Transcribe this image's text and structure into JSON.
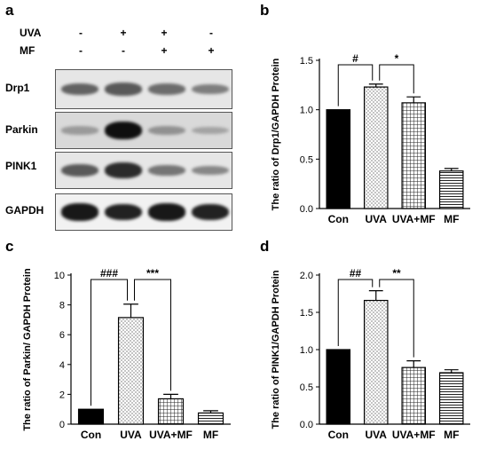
{
  "panels": {
    "a": "a",
    "b": "b",
    "c": "c",
    "d": "d"
  },
  "panel_a": {
    "treatments": [
      {
        "label": "UVA",
        "signs": [
          "-",
          "+",
          "+",
          "-"
        ]
      },
      {
        "label": "MF",
        "signs": [
          "-",
          "-",
          "+",
          "+"
        ]
      }
    ],
    "blots": [
      {
        "label": "Drp1",
        "intensity": [
          0.55,
          0.6,
          0.5,
          0.4
        ]
      },
      {
        "label": "Parkin",
        "intensity": [
          0.25,
          1.0,
          0.3,
          0.2
        ]
      },
      {
        "label": "PINK1",
        "intensity": [
          0.6,
          0.85,
          0.45,
          0.35
        ]
      },
      {
        "label": "GAPDH",
        "intensity": [
          0.95,
          0.9,
          0.95,
          0.9
        ]
      }
    ]
  },
  "chart_data": [
    {
      "type": "bar",
      "panel": "b",
      "categories": [
        "Con",
        "UVA",
        "UVA+MF",
        "MF"
      ],
      "values": [
        1.0,
        1.23,
        1.07,
        0.38
      ],
      "errors": [
        0,
        0.03,
        0.06,
        0.025
      ],
      "patterns": [
        "solid",
        "dots",
        "grid",
        "hlines"
      ],
      "ylabel": "The ratio of Drp1/GAPDH Protein",
      "ylim": [
        0,
        1.5
      ],
      "yticks": [
        "0.0",
        "0.5",
        "1.0",
        "1.5"
      ],
      "ytick_values": [
        0,
        0.5,
        1.0,
        1.5
      ],
      "significance": [
        {
          "from": "Con",
          "to": "UVA",
          "label": "#"
        },
        {
          "from": "UVA",
          "to": "UVA+MF",
          "label": "*"
        }
      ]
    },
    {
      "type": "bar",
      "panel": "c",
      "categories": [
        "Con",
        "UVA",
        "UVA+MF",
        "MF"
      ],
      "values": [
        1.0,
        7.15,
        1.7,
        0.75
      ],
      "errors": [
        0,
        0.9,
        0.3,
        0.15
      ],
      "patterns": [
        "solid",
        "dots",
        "grid",
        "hlines"
      ],
      "ylabel": "The ratio of Parkin/ GAPDH Protein",
      "ylim": [
        0,
        10
      ],
      "yticks": [
        "0",
        "2",
        "4",
        "6",
        "8",
        "10"
      ],
      "ytick_values": [
        0,
        2,
        4,
        6,
        8,
        10
      ],
      "significance": [
        {
          "from": "Con",
          "to": "UVA",
          "label": "###"
        },
        {
          "from": "UVA",
          "to": "UVA+MF",
          "label": "***"
        }
      ]
    },
    {
      "type": "bar",
      "panel": "d",
      "categories": [
        "Con",
        "UVA",
        "UVA+MF",
        "MF"
      ],
      "values": [
        1.0,
        1.66,
        0.76,
        0.69
      ],
      "errors": [
        0,
        0.13,
        0.09,
        0.04
      ],
      "patterns": [
        "solid",
        "dots",
        "grid",
        "hlines"
      ],
      "ylabel": "The ratio of PINK1/GAPDH Protein",
      "ylim": [
        0,
        2.0
      ],
      "yticks": [
        "0.0",
        "0.5",
        "1.0",
        "1.5",
        "2.0"
      ],
      "ytick_values": [
        0,
        0.5,
        1.0,
        1.5,
        2.0
      ],
      "significance": [
        {
          "from": "Con",
          "to": "UVA",
          "label": "##"
        },
        {
          "from": "UVA",
          "to": "UVA+MF",
          "label": "**"
        }
      ]
    }
  ]
}
